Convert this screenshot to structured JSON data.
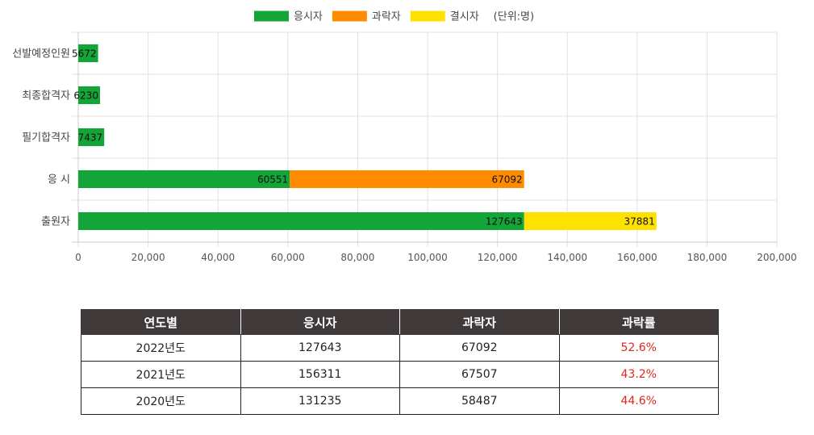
{
  "chart_data": {
    "type": "bar",
    "orientation": "horizontal",
    "stacked": true,
    "categories": [
      "선발예정인원",
      "최종합격자",
      "필기합격자",
      "응  시",
      "출원자"
    ],
    "series": [
      {
        "name": "응시자",
        "color": "#13a538",
        "values": [
          5672,
          6230,
          7437,
          60551,
          127643
        ]
      },
      {
        "name": "과락자",
        "color": "#ff8c00",
        "values": [
          null,
          null,
          null,
          67092,
          null
        ]
      },
      {
        "name": "결시자",
        "color": "#ffe100",
        "values": [
          null,
          null,
          null,
          null,
          37881
        ]
      }
    ],
    "xlim": [
      0,
      200000
    ],
    "xticks": [
      "0",
      "20,000",
      "40,000",
      "60,000",
      "80,000",
      "100,000",
      "120,000",
      "140,000",
      "160,000",
      "180,000",
      "200,000"
    ],
    "unit_note": "(단위:명)",
    "legend_position": "top-center",
    "grid": true
  },
  "table": {
    "headers": [
      "연도별",
      "응시자",
      "과락자",
      "과락률"
    ],
    "rows": [
      [
        "2022년도",
        "127643",
        "67092",
        "52.6%"
      ],
      [
        "2021년도",
        "156311",
        "67507",
        "43.2%"
      ],
      [
        "2020년도",
        "131235",
        "58487",
        "44.6%"
      ]
    ],
    "rate_color": "#e0271f"
  }
}
